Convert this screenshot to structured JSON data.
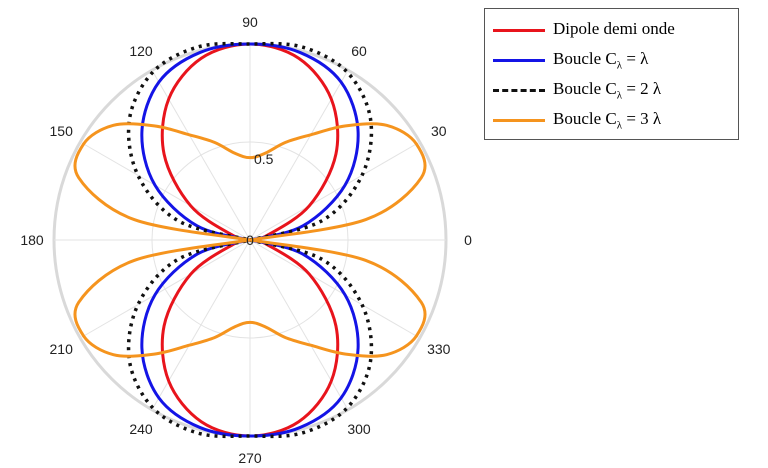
{
  "chart_data": {
    "type": "polar-line",
    "rlim": [
      0,
      1
    ],
    "r_ticks": [
      {
        "value": 0.5,
        "label": "0.5"
      }
    ],
    "angle_ticks": [
      0,
      30,
      60,
      90,
      120,
      150,
      180,
      210,
      240,
      270,
      300,
      330
    ],
    "angle_tick_labels": [
      "0",
      "30",
      "60",
      "90",
      "120",
      "150",
      "180",
      "210",
      "240",
      "270",
      "300",
      "330"
    ],
    "center_label": "0",
    "grid": true,
    "legend_position": "top-right",
    "series": [
      {
        "name": "Dipole demi onde",
        "name_main": "Dipole demi onde",
        "name_sub": "",
        "name_tail": "",
        "color": "#e8141c",
        "style": "solid",
        "theta_deg": [
          0,
          15,
          30,
          45,
          60,
          75,
          90,
          105,
          120,
          135,
          150,
          165,
          180
        ],
        "r": [
          0.0,
          0.09,
          0.35,
          0.62,
          0.83,
          0.96,
          1.0,
          0.96,
          0.83,
          0.62,
          0.35,
          0.09,
          0.0
        ]
      },
      {
        "name": "Boucle Cλ = λ",
        "name_main": "Boucle C",
        "name_sub": "λ",
        "name_tail": " = λ",
        "color": "#1414e6",
        "style": "solid",
        "theta_deg": [
          0,
          15,
          30,
          45,
          60,
          75,
          90,
          105,
          120,
          135,
          150,
          165,
          180
        ],
        "r": [
          0.0,
          0.28,
          0.56,
          0.78,
          0.93,
          0.99,
          1.0,
          0.99,
          0.93,
          0.78,
          0.56,
          0.28,
          0.0
        ]
      },
      {
        "name": "Boucle Cλ = 2 λ",
        "name_main": "Boucle C",
        "name_sub": "λ",
        "name_tail": " = 2 λ",
        "color": "#111111",
        "style": "dashed",
        "theta_deg": [
          0,
          15,
          30,
          45,
          60,
          75,
          90,
          105,
          120,
          135,
          150,
          165,
          180
        ],
        "r": [
          0.0,
          0.38,
          0.66,
          0.87,
          0.99,
          1.02,
          1.0,
          1.02,
          0.99,
          0.87,
          0.66,
          0.38,
          0.0
        ]
      },
      {
        "name": "Boucle Cλ = 3 λ",
        "name_main": "Boucle C",
        "name_sub": "λ",
        "name_tail": " = 3 λ",
        "color": "#f5941e",
        "style": "solid",
        "theta_deg": [
          0,
          10,
          20,
          30,
          40,
          50,
          60,
          70,
          80,
          90,
          100,
          110,
          120,
          130,
          140,
          150,
          160,
          170,
          180
        ],
        "r": [
          0.0,
          0.6,
          0.93,
          0.98,
          0.91,
          0.76,
          0.62,
          0.53,
          0.45,
          0.42,
          0.45,
          0.53,
          0.62,
          0.76,
          0.91,
          0.98,
          0.93,
          0.6,
          0.0
        ]
      }
    ]
  }
}
